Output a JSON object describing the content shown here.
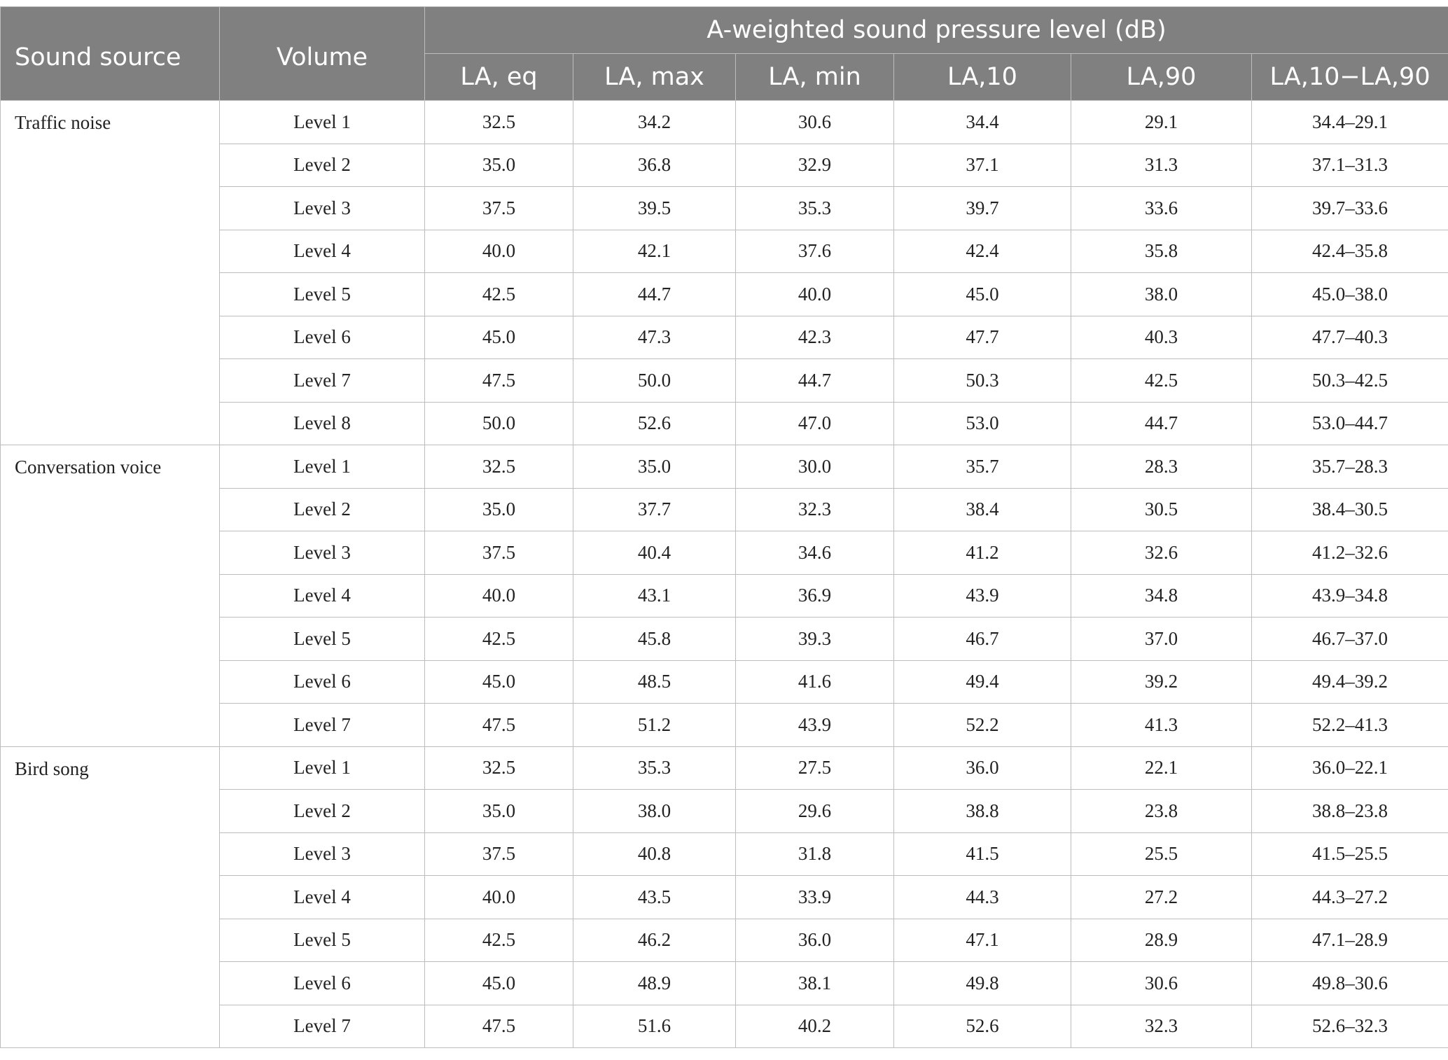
{
  "header": {
    "sound_source": "Sound source",
    "volume": "Volume",
    "group": "A-weighted sound pressure level (dB)",
    "columns": [
      "LA, eq",
      "LA, max",
      "LA, min",
      "LA,10",
      "LA,90",
      "LA,10−LA,90"
    ]
  },
  "groups": [
    {
      "source": "Traffic noise",
      "rows": [
        [
          "Level 1",
          "32.5",
          "34.2",
          "30.6",
          "34.4",
          "29.1",
          "34.4–29.1"
        ],
        [
          "Level 2",
          "35.0",
          "36.8",
          "32.9",
          "37.1",
          "31.3",
          "37.1–31.3"
        ],
        [
          "Level 3",
          "37.5",
          "39.5",
          "35.3",
          "39.7",
          "33.6",
          "39.7–33.6"
        ],
        [
          "Level 4",
          "40.0",
          "42.1",
          "37.6",
          "42.4",
          "35.8",
          "42.4–35.8"
        ],
        [
          "Level 5",
          "42.5",
          "44.7",
          "40.0",
          "45.0",
          "38.0",
          "45.0–38.0"
        ],
        [
          "Level 6",
          "45.0",
          "47.3",
          "42.3",
          "47.7",
          "40.3",
          "47.7–40.3"
        ],
        [
          "Level 7",
          "47.5",
          "50.0",
          "44.7",
          "50.3",
          "42.5",
          "50.3–42.5"
        ],
        [
          "Level 8",
          "50.0",
          "52.6",
          "47.0",
          "53.0",
          "44.7",
          "53.0–44.7"
        ]
      ]
    },
    {
      "source": "Conversation voice",
      "rows": [
        [
          "Level 1",
          "32.5",
          "35.0",
          "30.0",
          "35.7",
          "28.3",
          "35.7–28.3"
        ],
        [
          "Level 2",
          "35.0",
          "37.7",
          "32.3",
          "38.4",
          "30.5",
          "38.4–30.5"
        ],
        [
          "Level 3",
          "37.5",
          "40.4",
          "34.6",
          "41.2",
          "32.6",
          "41.2–32.6"
        ],
        [
          "Level 4",
          "40.0",
          "43.1",
          "36.9",
          "43.9",
          "34.8",
          "43.9–34.8"
        ],
        [
          "Level 5",
          "42.5",
          "45.8",
          "39.3",
          "46.7",
          "37.0",
          "46.7–37.0"
        ],
        [
          "Level 6",
          "45.0",
          "48.5",
          "41.6",
          "49.4",
          "39.2",
          "49.4–39.2"
        ],
        [
          "Level 7",
          "47.5",
          "51.2",
          "43.9",
          "52.2",
          "41.3",
          "52.2–41.3"
        ]
      ]
    },
    {
      "source": "Bird song",
      "rows": [
        [
          "Level 1",
          "32.5",
          "35.3",
          "27.5",
          "36.0",
          "22.1",
          "36.0–22.1"
        ],
        [
          "Level 2",
          "35.0",
          "38.0",
          "29.6",
          "38.8",
          "23.8",
          "38.8–23.8"
        ],
        [
          "Level 3",
          "37.5",
          "40.8",
          "31.8",
          "41.5",
          "25.5",
          "41.5–25.5"
        ],
        [
          "Level 4",
          "40.0",
          "43.5",
          "33.9",
          "44.3",
          "27.2",
          "44.3–27.2"
        ],
        [
          "Level 5",
          "42.5",
          "46.2",
          "36.0",
          "47.1",
          "28.9",
          "47.1–28.9"
        ],
        [
          "Level 6",
          "45.0",
          "48.9",
          "38.1",
          "49.8",
          "30.6",
          "49.8–30.6"
        ],
        [
          "Level 7",
          "47.5",
          "51.6",
          "40.2",
          "52.6",
          "32.3",
          "52.6–32.3"
        ]
      ]
    }
  ]
}
